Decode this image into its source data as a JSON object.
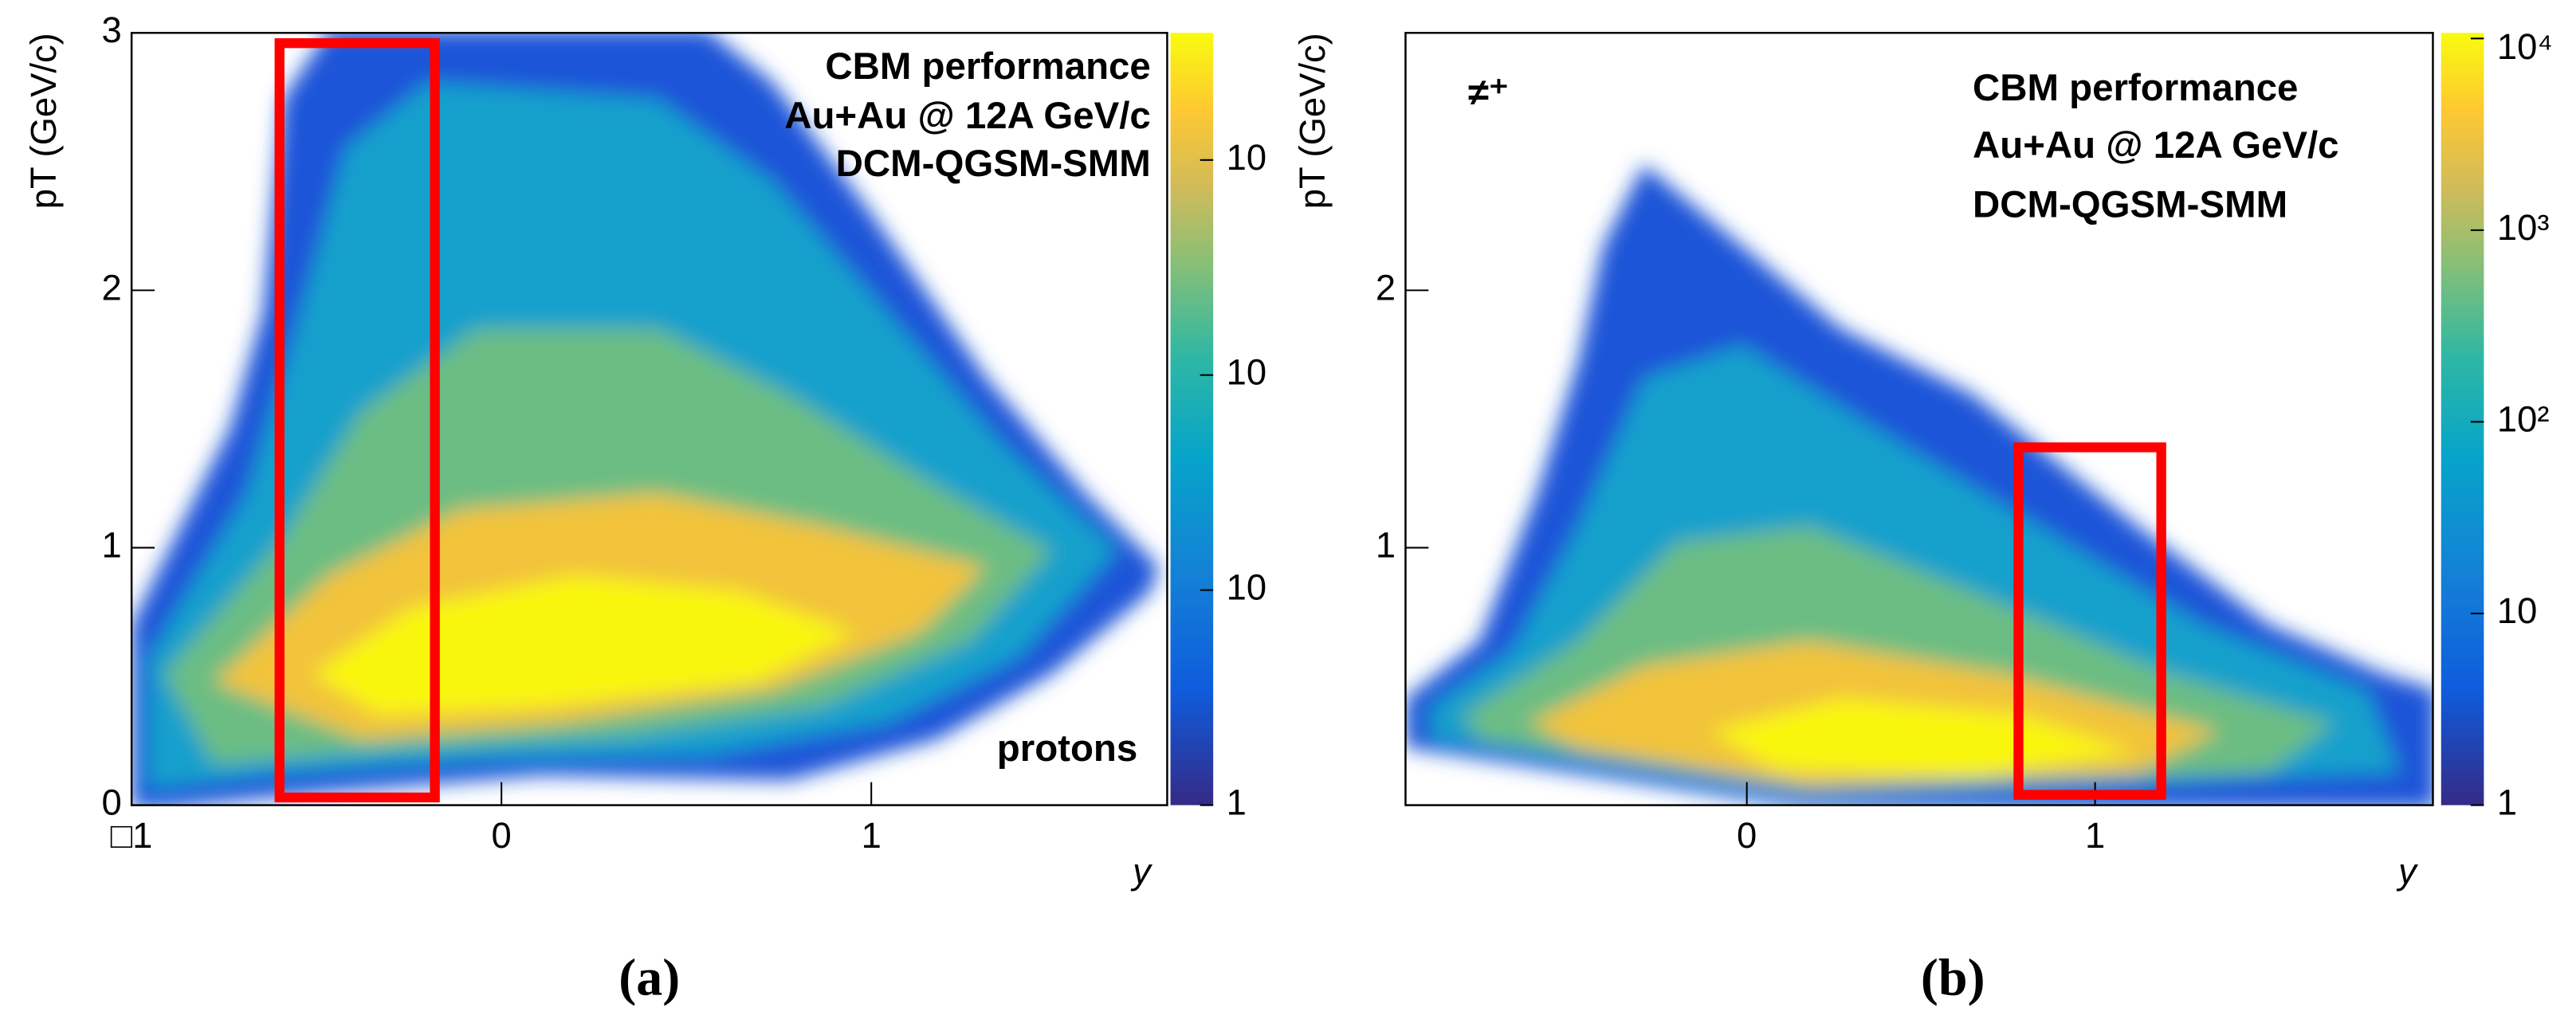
{
  "chart_data": [
    {
      "type": "heatmap",
      "caption": "(a)",
      "xlabel": "y",
      "ylabel": "pT (GeV/c)",
      "annotations": [
        "CBM performance",
        "Au+Au @ 12A GeV/c",
        "DCM-QGSM-SMM",
        "protons"
      ],
      "xlim": [
        -1,
        1.8
      ],
      "xticks": [
        {
          "value": -1,
          "label": "□1"
        },
        0,
        1
      ],
      "ylim": [
        0,
        3
      ],
      "yticks": [
        0,
        1,
        2,
        3
      ],
      "zlim": [
        1,
        3900
      ],
      "zlog": true,
      "zticks": [
        1,
        10,
        {
          "value": 100,
          "label": "10"
        },
        {
          "value": 1000,
          "label": "10"
        }
      ],
      "highlight": {
        "x": [
          -0.6,
          -0.18
        ],
        "y": [
          0.03,
          2.96
        ],
        "color": "#ff0000"
      }
    },
    {
      "type": "heatmap",
      "caption": "(b)",
      "xlabel": "y",
      "ylabel": "pT (GeV/c)",
      "annotations": [
        "≠⁺",
        "CBM performance",
        "Au+Au @ 12A GeV/c",
        "DCM-QGSM-SMM"
      ],
      "xlim": [
        -0.98,
        1.97
      ],
      "xticks": [
        0,
        1
      ],
      "ylim": [
        0,
        3
      ],
      "yticks": [
        1,
        2
      ],
      "zlim": [
        1,
        10700
      ],
      "zlog": true,
      "zticks": [
        1,
        10,
        {
          "value": 100,
          "label": "10²"
        },
        {
          "value": 1000,
          "label": "10³"
        },
        {
          "value": 10000,
          "label": "10⁴"
        }
      ],
      "highlight": {
        "x": [
          0.78,
          1.19
        ],
        "y": [
          0.04,
          1.39
        ],
        "color": "#ff0000"
      }
    }
  ]
}
